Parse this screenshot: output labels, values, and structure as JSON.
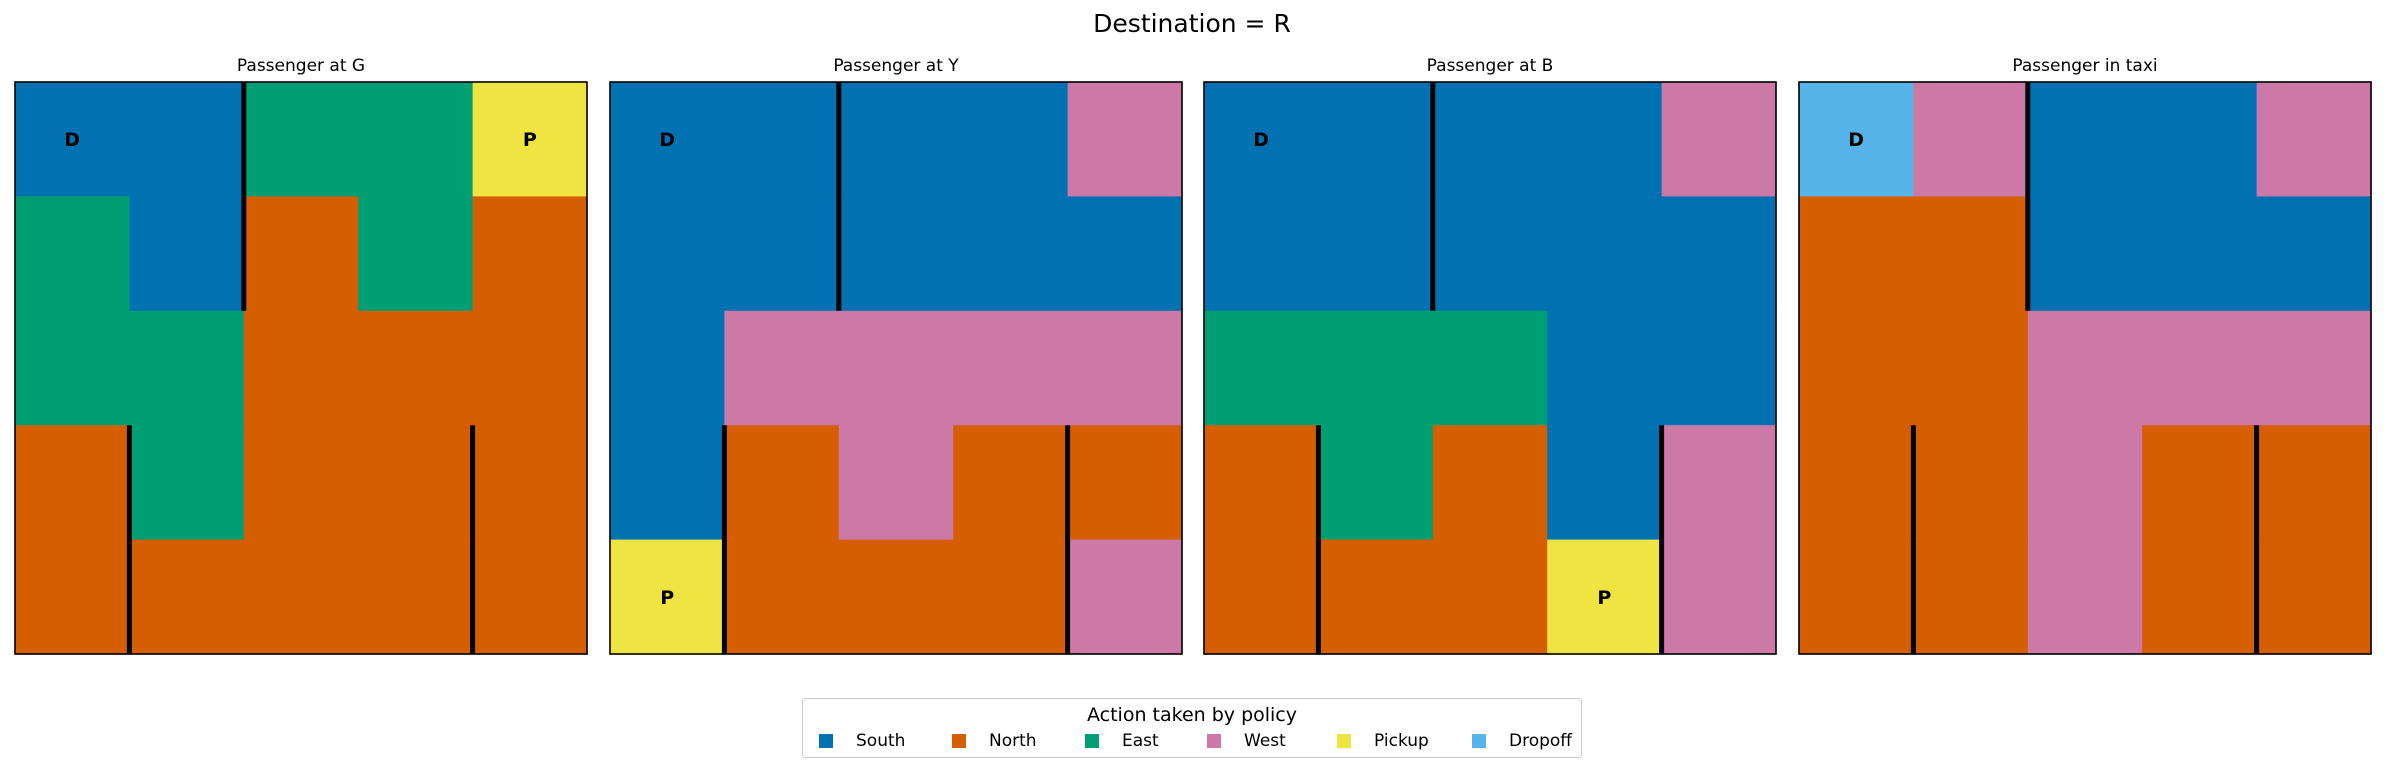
{
  "chart_data": {
    "type": "heatmap",
    "title": "Destination = R",
    "grid_size": [
      5,
      5
    ],
    "actions": [
      "South",
      "North",
      "East",
      "West",
      "Pickup",
      "Dropoff"
    ],
    "colors": {
      "South": "#0072b2",
      "North": "#d55e00",
      "East": "#009e73",
      "West": "#cc79a7",
      "Pickup": "#f0e442",
      "Dropoff": "#56b4e9"
    },
    "walls": [
      [
        0,
        1,
        1
      ],
      [
        1,
        1,
        1
      ],
      [
        3,
        0,
        0
      ],
      [
        4,
        0,
        0
      ],
      [
        3,
        3,
        3
      ],
      [
        4,
        3,
        3
      ]
    ],
    "panels": [
      {
        "title": "Passenger at G",
        "grid": [
          [
            "South",
            "South",
            "East",
            "East",
            "Pickup"
          ],
          [
            "East",
            "South",
            "North",
            "East",
            "North"
          ],
          [
            "East",
            "East",
            "North",
            "North",
            "North"
          ],
          [
            "North",
            "East",
            "North",
            "North",
            "North"
          ],
          [
            "North",
            "North",
            "North",
            "North",
            "North"
          ]
        ],
        "markers": [
          {
            "text": "D",
            "row": 0,
            "col": 0
          },
          {
            "text": "P",
            "row": 0,
            "col": 4
          }
        ]
      },
      {
        "title": "Passenger at Y",
        "grid": [
          [
            "South",
            "South",
            "South",
            "South",
            "West"
          ],
          [
            "South",
            "South",
            "South",
            "South",
            "South"
          ],
          [
            "South",
            "West",
            "West",
            "West",
            "West"
          ],
          [
            "South",
            "North",
            "West",
            "North",
            "North"
          ],
          [
            "Pickup",
            "North",
            "North",
            "North",
            "West"
          ]
        ],
        "markers": [
          {
            "text": "D",
            "row": 0,
            "col": 0
          },
          {
            "text": "P",
            "row": 4,
            "col": 0
          }
        ]
      },
      {
        "title": "Passenger at B",
        "grid": [
          [
            "South",
            "South",
            "South",
            "South",
            "West"
          ],
          [
            "South",
            "South",
            "South",
            "South",
            "South"
          ],
          [
            "East",
            "East",
            "East",
            "South",
            "South"
          ],
          [
            "North",
            "East",
            "North",
            "South",
            "West"
          ],
          [
            "North",
            "North",
            "North",
            "Pickup",
            "West"
          ]
        ],
        "markers": [
          {
            "text": "D",
            "row": 0,
            "col": 0
          },
          {
            "text": "P",
            "row": 4,
            "col": 3
          }
        ]
      },
      {
        "title": "Passenger in taxi",
        "grid": [
          [
            "Dropoff",
            "West",
            "South",
            "South",
            "West"
          ],
          [
            "North",
            "North",
            "South",
            "South",
            "South"
          ],
          [
            "North",
            "North",
            "West",
            "West",
            "West"
          ],
          [
            "North",
            "North",
            "West",
            "North",
            "North"
          ],
          [
            "North",
            "North",
            "West",
            "North",
            "North"
          ]
        ],
        "markers": [
          {
            "text": "D",
            "row": 0,
            "col": 0
          }
        ]
      }
    ],
    "legend": {
      "title": "Action taken by policy",
      "placement": "bottom-center"
    }
  }
}
